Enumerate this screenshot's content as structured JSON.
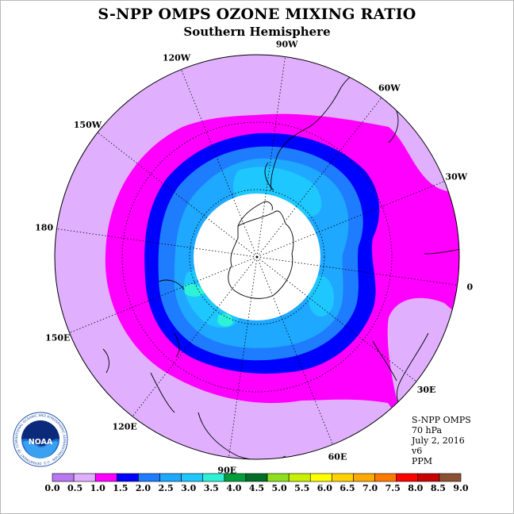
{
  "header": {
    "title": "S-NPP OMPS OZONE MIXING RATIO",
    "subtitle": "Southern Hemisphere"
  },
  "map": {
    "projection": "south-polar-stereographic",
    "longitude_labels": [
      "90W",
      "60W",
      "30W",
      "0",
      "30E",
      "60E",
      "90E",
      "120E",
      "150E",
      "180",
      "150W",
      "120W"
    ],
    "colors": {
      "ring_outer": "#e0b0ff",
      "ring_magenta": "#ff00ff",
      "ring_blue": "#0000ff",
      "ring_mid_blue": "#1e7cff",
      "ring_light_blue": "#1ea8ff",
      "ring_sky": "#1ec8ff",
      "ring_cyan": "#00e0ff",
      "patch_aqua": "#2ef2d6",
      "polar_hole": "#ffffff",
      "coastline": "#000000"
    }
  },
  "info": {
    "instrument": "S-NPP OMPS",
    "level": "70 hPa",
    "date": "July 2, 2016",
    "version": "v6",
    "units": "PPM"
  },
  "colorbar": {
    "ticks": [
      "0.0",
      "0.5",
      "1.0",
      "1.5",
      "2.0",
      "2.5",
      "3.0",
      "3.5",
      "4.0",
      "4.5",
      "5.0",
      "5.5",
      "6.0",
      "6.5",
      "7.0",
      "7.5",
      "8.0",
      "8.5",
      "9.0"
    ],
    "colors": [
      "#b878f0",
      "#e0b0ff",
      "#ff00ff",
      "#0000ff",
      "#1e7cff",
      "#1ea8ff",
      "#1ec8ff",
      "#2ef2d6",
      "#009e3c",
      "#006e28",
      "#8ee01e",
      "#c8f000",
      "#ffff00",
      "#ffd200",
      "#ffaa00",
      "#ff7a00",
      "#ff0000",
      "#c80000",
      "#8c5032"
    ]
  },
  "logo": {
    "text": "NOAA",
    "ring_text": "NATIONAL OCEANIC AND ATMOSPHERIC ADMINISTRATION · U.S. DEPARTMENT OF COMMERCE ·"
  }
}
